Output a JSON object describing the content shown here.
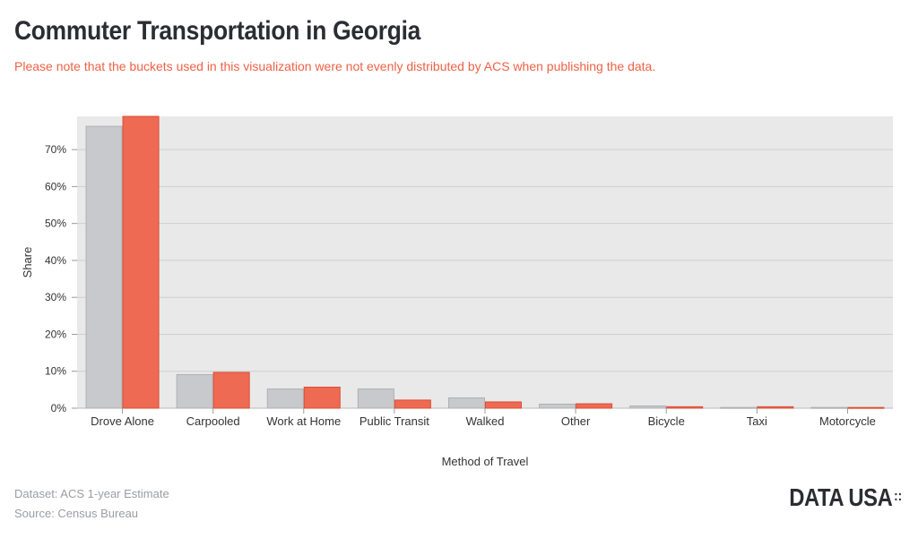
{
  "header": {
    "title": "Commuter Transportation in Georgia",
    "subtitle": "Please note that the buckets used in this visualization were not evenly distributed by ACS when publishing the data."
  },
  "footer": {
    "dataset": "Dataset: ACS 1-year Estimate",
    "source": "Source: Census Bureau",
    "logo": "DATA USA",
    "logo_mark": "::"
  },
  "colors": {
    "series_gray": "#c8c9cd",
    "series_orange": "#ef6a52",
    "plot_bg": "#e9e9e9",
    "grid": "#cfcfcf"
  },
  "chart_data": {
    "type": "bar",
    "xlabel": "Method of Travel",
    "ylabel": "Share",
    "ylim": [
      0,
      0.79
    ],
    "y_ticks": [
      0,
      0.1,
      0.2,
      0.3,
      0.4,
      0.5,
      0.6,
      0.7
    ],
    "y_tick_labels": [
      "0%",
      "10%",
      "20%",
      "30%",
      "40%",
      "50%",
      "60%",
      "70%"
    ],
    "grid": true,
    "categories": [
      "Drove Alone",
      "Carpooled",
      "Work at Home",
      "Public Transit",
      "Walked",
      "Other",
      "Bicycle",
      "Taxi",
      "Motorcycle"
    ],
    "series": [
      {
        "color": "#c8c9cd",
        "values": [
          0.763,
          0.091,
          0.052,
          0.052,
          0.028,
          0.011,
          0.006,
          0.002,
          0.002
        ]
      },
      {
        "color": "#ef6a52",
        "values": [
          0.79,
          0.097,
          0.057,
          0.022,
          0.017,
          0.012,
          0.004,
          0.004,
          0.002
        ]
      }
    ]
  }
}
